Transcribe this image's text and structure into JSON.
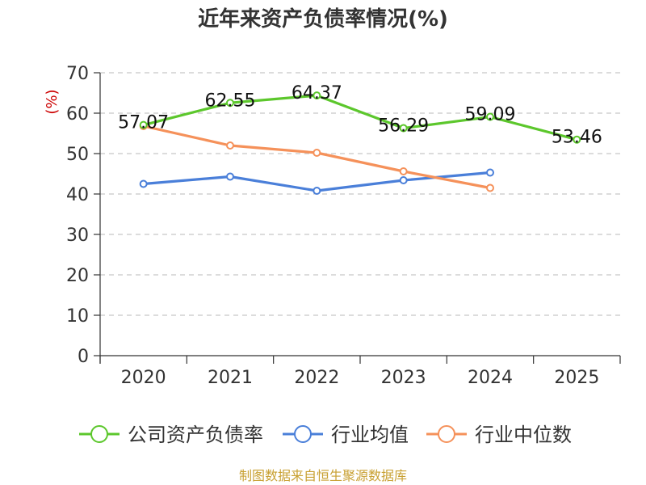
{
  "chart_data": {
    "type": "line",
    "title": "近年来资产负债率情况(%)",
    "ylabel": "(%)",
    "xlabel": "",
    "ylim": [
      0,
      70
    ],
    "yticks": [
      "0",
      "10",
      "20",
      "30",
      "40",
      "50",
      "60",
      "70"
    ],
    "categories": [
      "2020",
      "2021",
      "2022",
      "2023",
      "2024",
      "2025"
    ],
    "series": [
      {
        "name": "公司资产负债率",
        "color": "#5cc72c",
        "values": [
          57.07,
          62.55,
          64.37,
          56.29,
          59.09,
          53.46
        ],
        "labels": [
          "57.07",
          "62.55",
          "64.37",
          "56.29",
          "59.09",
          "53.46"
        ]
      },
      {
        "name": "行业均值",
        "color": "#4a7fd9",
        "values": [
          42.5,
          44.3,
          40.8,
          43.4,
          45.3,
          null
        ]
      },
      {
        "name": "行业中位数",
        "color": "#f5915a",
        "values": [
          56.8,
          52.0,
          50.2,
          45.6,
          41.5,
          null
        ]
      }
    ],
    "grid": true,
    "legend": "bottom",
    "source": "制图数据来自恒生聚源数据库"
  }
}
